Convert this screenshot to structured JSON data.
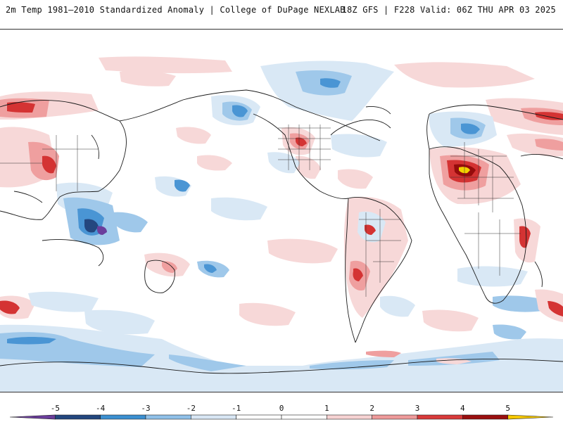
{
  "header": {
    "title_left": "2m Temp 1981–2010 Standardized Anomaly | College of DuPage NEXLAB",
    "title_right": "18Z GFS | F228 Valid: 06Z THU APR 03 2025"
  },
  "colorbar": {
    "ticks": [
      "-5",
      "-4",
      "-3",
      "-2",
      "-1",
      "0",
      "1",
      "2",
      "3",
      "4",
      "5"
    ],
    "colors": [
      "#6a3d9a",
      "#22467e",
      "#3b8fd0",
      "#8fc0e8",
      "#d8e6f4",
      "#ffffff",
      "#ffffff",
      "#f6d2d2",
      "#ee9a9a",
      "#d83a3a",
      "#9a0f0f",
      "#f6c800"
    ]
  },
  "map": {
    "projection": "equirectangular",
    "center_longitude": "180",
    "colors": {
      "warm_light": "#f7d8d8",
      "warm_mid": "#ef9f9f",
      "warm_strong": "#d43333",
      "warm_extreme": "#950c0c",
      "warm_max": "#f2d200",
      "cool_light": "#d9e8f5",
      "cool_mid": "#9fc8ea",
      "cool_strong": "#4a95d4",
      "cool_extreme": "#24477f",
      "cool_max": "#6b3e9c",
      "coast": "#1a1a1a"
    }
  }
}
